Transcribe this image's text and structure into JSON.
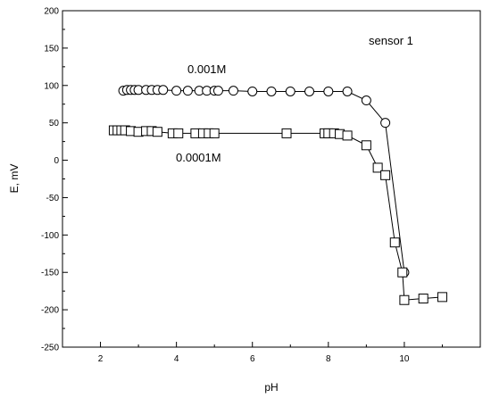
{
  "chart_data": {
    "type": "scatter",
    "title": "",
    "xlabel": "pH",
    "ylabel": "E, mV",
    "xlim": [
      1,
      12
    ],
    "ylim": [
      -250,
      200
    ],
    "xticks": [
      2,
      4,
      6,
      8,
      10
    ],
    "yticks": [
      -250,
      -200,
      -150,
      -100,
      -50,
      0,
      50,
      100,
      150,
      200
    ],
    "grid": false,
    "annotation": "sensor 1",
    "series": [
      {
        "name": "0.001M",
        "marker": "circle",
        "x": [
          2.6,
          2.7,
          2.8,
          2.9,
          3.0,
          3.2,
          3.35,
          3.5,
          3.65,
          4.0,
          4.3,
          4.6,
          4.8,
          5.0,
          5.1,
          5.5,
          6.0,
          6.5,
          7.0,
          7.5,
          8.0,
          8.5,
          9.0,
          9.5,
          10.0
        ],
        "y": [
          93,
          94,
          94,
          94,
          94,
          94,
          94,
          94,
          94,
          93,
          93,
          93,
          93,
          93,
          93,
          93,
          92,
          92,
          92,
          92,
          92,
          92,
          80,
          50,
          -150
        ]
      },
      {
        "name": "0.0001M",
        "marker": "square",
        "x": [
          2.35,
          2.45,
          2.55,
          2.65,
          2.8,
          3.0,
          3.2,
          3.35,
          3.5,
          3.9,
          4.05,
          4.5,
          4.7,
          4.85,
          5.0,
          6.9,
          7.9,
          8.0,
          8.15,
          8.3,
          8.5,
          9.0,
          9.3,
          9.5,
          9.75,
          9.95,
          10.0,
          10.5,
          11.0
        ],
        "y": [
          40,
          40,
          40,
          40,
          39,
          38,
          39,
          39,
          38,
          36,
          36,
          36,
          36,
          36,
          36,
          36,
          36,
          36,
          36,
          35,
          33,
          20,
          -10,
          -20,
          -110,
          -150,
          -187,
          -185,
          -183
        ]
      }
    ]
  }
}
